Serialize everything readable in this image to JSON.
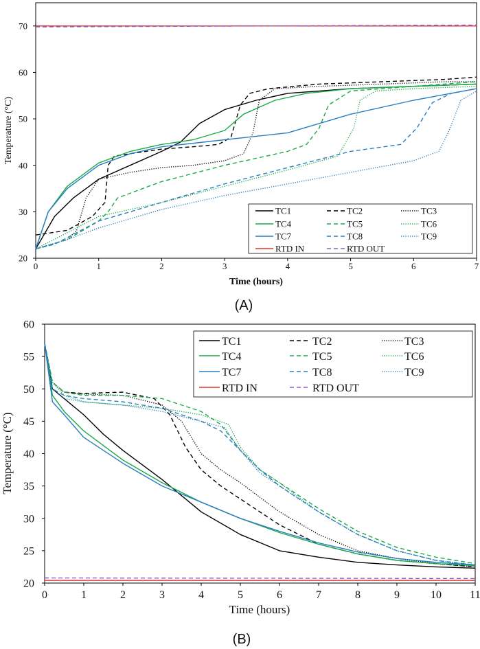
{
  "colors": {
    "black": "#000000",
    "green": "#1aaa48",
    "blue": "#2a7dc1",
    "red": "#e0322e",
    "purple": "#8d60c8"
  },
  "chart_data": [
    {
      "panel_label": "(A)",
      "type": "line",
      "xlabel": "Time (hours)",
      "ylabel": "Temperature (°C)",
      "xlim": [
        0,
        7
      ],
      "ylim": [
        20,
        75
      ],
      "xticks": [
        "0",
        "1",
        "2",
        "3",
        "4",
        "5",
        "6",
        "7"
      ],
      "yticks": [
        "20",
        "30",
        "40",
        "50",
        "60",
        "70"
      ],
      "legend_position": "bottom-right",
      "series": [
        {
          "name": "TC1",
          "color": "#000000",
          "dash": "solid",
          "x": [
            0,
            0.3,
            0.6,
            1,
            1.5,
            2,
            2.3,
            2.6,
            3,
            3.5,
            4,
            5,
            6,
            7
          ],
          "y": [
            22,
            29,
            33,
            37,
            40,
            43,
            45,
            49,
            52,
            54,
            55.5,
            56.5,
            57,
            57.5
          ]
        },
        {
          "name": "TC2",
          "color": "#000000",
          "dash": "dashed",
          "x": [
            0,
            0.5,
            0.9,
            1.1,
            1.15,
            1.25,
            1.5,
            2,
            2.5,
            2.9,
            3.1,
            3.25,
            3.4,
            3.7,
            4.5,
            5.5,
            6.5,
            7
          ],
          "y": [
            25,
            26,
            29,
            32,
            40,
            42,
            42.5,
            43.5,
            44,
            44.5,
            46,
            53,
            55.5,
            56.5,
            57.5,
            58,
            58.5,
            59
          ]
        },
        {
          "name": "TC3",
          "color": "#000000",
          "dash": "dotted",
          "x": [
            0,
            0.5,
            0.65,
            0.8,
            1,
            1.5,
            2,
            2.5,
            3,
            3.3,
            3.45,
            3.55,
            3.8,
            4.5,
            5.5,
            6.5,
            7
          ],
          "y": [
            22,
            24,
            26,
            33,
            37,
            38.5,
            39.5,
            40,
            41,
            42.5,
            47,
            54,
            56.5,
            57,
            57.5,
            58,
            58
          ]
        },
        {
          "name": "TC4",
          "color": "#1aaa48",
          "dash": "solid",
          "x": [
            0,
            0.2,
            0.5,
            1,
            1.5,
            2,
            2.5,
            3,
            3.3,
            3.8,
            4.3,
            5,
            6,
            7
          ],
          "y": [
            22,
            30,
            35.5,
            40.5,
            43,
            44.5,
            45.5,
            47.5,
            51,
            54,
            55.5,
            56.5,
            57,
            57.5
          ]
        },
        {
          "name": "TC5",
          "color": "#1aaa48",
          "dash": "dashed",
          "x": [
            0,
            0.5,
            1,
            1.15,
            1.3,
            2,
            3,
            4,
            4.3,
            4.5,
            4.65,
            5,
            6,
            7
          ],
          "y": [
            22,
            24,
            28,
            30,
            33,
            36.5,
            40,
            43,
            44.5,
            48,
            53,
            56,
            57,
            58
          ]
        },
        {
          "name": "TC6",
          "color": "#1aaa48",
          "dash": "dotted",
          "x": [
            0,
            0.5,
            1,
            2,
            3,
            4,
            4.8,
            5.05,
            5.15,
            5.4,
            6,
            7
          ],
          "y": [
            22,
            25.5,
            29,
            32,
            35.5,
            39,
            42,
            48,
            54,
            56,
            56.5,
            57
          ]
        },
        {
          "name": "TC7",
          "color": "#2a7dc1",
          "dash": "solid",
          "x": [
            0,
            0.2,
            0.5,
            1,
            1.5,
            2,
            3,
            4,
            5,
            6,
            7
          ],
          "y": [
            22,
            30,
            35,
            40,
            42.5,
            44,
            45.5,
            47,
            51,
            54,
            56.5
          ]
        },
        {
          "name": "TC8",
          "color": "#2a7dc1",
          "dash": "dashed",
          "x": [
            0,
            0.3,
            1,
            2,
            3,
            4,
            5,
            5.8,
            6.05,
            6.3,
            6.6,
            7
          ],
          "y": [
            22,
            23,
            28,
            32,
            36,
            39.5,
            43,
            44.5,
            48,
            53.5,
            55.5,
            56.5
          ]
        },
        {
          "name": "TC9",
          "color": "#2a7dc1",
          "dash": "dotted",
          "x": [
            0,
            0.5,
            1,
            2,
            3,
            4,
            5,
            6,
            6.4,
            6.55,
            6.75,
            7
          ],
          "y": [
            22,
            24,
            26.5,
            30.5,
            33.5,
            36,
            38.5,
            41,
            43,
            47,
            54,
            56
          ]
        },
        {
          "name": "RTD IN",
          "color": "#e0322e",
          "dash": "solid",
          "x": [
            0,
            7
          ],
          "y": [
            70,
            70
          ]
        },
        {
          "name": "RTD OUT",
          "color": "#8d60c8",
          "dash": "dashed",
          "x": [
            0,
            7
          ],
          "y": [
            69.8,
            70.2
          ]
        }
      ]
    },
    {
      "panel_label": "(B)",
      "type": "line",
      "xlabel": "Time (hours)",
      "ylabel": "Temperature (°C)",
      "xlim": [
        0,
        11
      ],
      "ylim": [
        20,
        60
      ],
      "xticks": [
        "0",
        "1",
        "2",
        "3",
        "4",
        "5",
        "6",
        "7",
        "8",
        "9",
        "10",
        "11"
      ],
      "yticks": [
        "20",
        "25",
        "30",
        "35",
        "40",
        "45",
        "50",
        "55",
        "60"
      ],
      "legend_position": "top-right",
      "series": [
        {
          "name": "TC1",
          "color": "#000000",
          "dash": "solid",
          "x": [
            0,
            0.2,
            0.5,
            1,
            1.5,
            2,
            3,
            4,
            5,
            6,
            7,
            8,
            9,
            10,
            11
          ],
          "y": [
            57,
            50,
            48.5,
            46,
            43,
            40.5,
            36,
            31,
            27.5,
            25,
            24,
            23.2,
            22.8,
            22.5,
            22.3
          ]
        },
        {
          "name": "TC2",
          "color": "#000000",
          "dash": "dashed",
          "x": [
            0,
            0.2,
            0.5,
            1,
            2,
            2.8,
            3.2,
            3.6,
            4,
            4.5,
            5,
            6,
            7,
            8,
            9,
            10,
            11
          ],
          "y": [
            57,
            51,
            49.5,
            49.3,
            49.5,
            48.5,
            46,
            41,
            37.5,
            35,
            33,
            29,
            26,
            24.5,
            23.5,
            23,
            22.5
          ]
        },
        {
          "name": "TC3",
          "color": "#000000",
          "dash": "dotted",
          "x": [
            0,
            0.2,
            0.5,
            1,
            2,
            3,
            3.5,
            4,
            4.5,
            5,
            6,
            7,
            8,
            9,
            10,
            11
          ],
          "y": [
            57,
            51,
            49.5,
            49.2,
            49,
            47.5,
            45,
            40,
            37.5,
            35.5,
            31,
            27.5,
            25,
            23.8,
            23,
            22.5
          ]
        },
        {
          "name": "TC4",
          "color": "#1aaa48",
          "dash": "solid",
          "x": [
            0,
            0.2,
            0.5,
            1,
            2,
            3,
            4,
            5,
            6,
            7,
            8,
            9,
            10,
            11
          ],
          "y": [
            57,
            49,
            46.5,
            43.5,
            39,
            35.5,
            32.5,
            30,
            27.8,
            26,
            24.5,
            23.5,
            23,
            22.7
          ]
        },
        {
          "name": "TC5",
          "color": "#1aaa48",
          "dash": "dashed",
          "x": [
            0,
            0.2,
            0.5,
            1,
            2,
            3,
            4,
            4.5,
            5,
            5.5,
            6,
            7,
            8,
            9,
            10,
            11
          ],
          "y": [
            57,
            51,
            49.5,
            49,
            49,
            48.5,
            46.5,
            44.5,
            40.5,
            37.5,
            35.5,
            31.5,
            28,
            25.5,
            24,
            23
          ]
        },
        {
          "name": "TC6",
          "color": "#1aaa48",
          "dash": "dotted",
          "x": [
            0,
            0.2,
            0.5,
            1,
            2,
            3,
            4,
            4.7,
            5,
            5.5,
            6,
            7,
            8,
            9,
            10,
            11
          ],
          "y": [
            57,
            51,
            49,
            48,
            47.5,
            47,
            46,
            44.5,
            41,
            37.5,
            35.5,
            31,
            27.5,
            25,
            23.5,
            22.8
          ]
        },
        {
          "name": "TC7",
          "color": "#2a7dc1",
          "dash": "solid",
          "x": [
            0,
            0.2,
            0.5,
            1,
            2,
            3,
            4,
            5,
            6,
            7,
            8,
            9,
            10,
            11
          ],
          "y": [
            57,
            48,
            46,
            42.5,
            38.5,
            35,
            32.5,
            30,
            28,
            26.2,
            24.8,
            23.8,
            23.2,
            22.8
          ]
        },
        {
          "name": "TC8",
          "color": "#2a7dc1",
          "dash": "dashed",
          "x": [
            0,
            0.2,
            0.5,
            1,
            2,
            3,
            4,
            4.5,
            5,
            5.5,
            6,
            7,
            8,
            9,
            10,
            11
          ],
          "y": [
            57,
            50,
            49,
            48.5,
            48,
            47,
            45,
            43.5,
            40.5,
            37.5,
            35,
            31,
            27.5,
            25,
            23.5,
            22.8
          ]
        },
        {
          "name": "TC9",
          "color": "#2a7dc1",
          "dash": "dotted",
          "x": [
            0,
            0.2,
            0.5,
            1,
            2,
            3,
            4,
            4.6,
            5,
            5.5,
            6,
            7,
            8,
            9,
            10,
            11
          ],
          "y": [
            57,
            50,
            48.5,
            48,
            47.5,
            46.5,
            45,
            44,
            40.5,
            37,
            35,
            31,
            27.5,
            25,
            23.5,
            22.8
          ]
        },
        {
          "name": "RTD IN",
          "color": "#e0322e",
          "dash": "solid",
          "x": [
            0,
            11
          ],
          "y": [
            20.4,
            20.4
          ]
        },
        {
          "name": "RTD OUT",
          "color": "#8d60c8",
          "dash": "dashed",
          "x": [
            0,
            11
          ],
          "y": [
            20.8,
            20.7
          ]
        }
      ]
    }
  ]
}
